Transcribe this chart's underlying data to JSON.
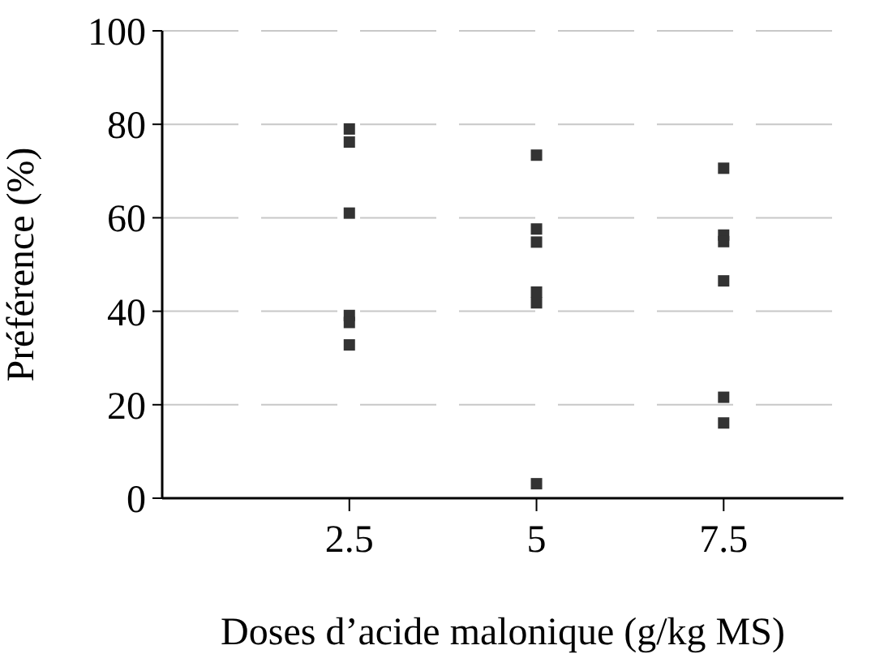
{
  "chart_data": {
    "type": "scatter",
    "xlabel": "Doses d’acide malonique (g/kg MS)",
    "ylabel": "Préférence (%)",
    "series": [
      {
        "color": "#333333",
        "x": [
          2.5,
          2.5,
          2.5,
          2.5,
          2.5,
          2.5,
          5,
          5,
          5,
          5,
          5,
          5,
          7.5,
          7.5,
          7.5,
          7.5,
          7.5,
          7.5
        ],
        "values": [
          79,
          76.2,
          61,
          39.1,
          37.6,
          32.8,
          73.4,
          57.6,
          54.8,
          44.1,
          41.8,
          3.1,
          70.6,
          56.3,
          54.9,
          46.5,
          21.6,
          16.1
        ]
      }
    ],
    "xlim": [
      0,
      9.1
    ],
    "xticks": [
      2.5,
      5,
      7.5
    ],
    "ylim": [
      0,
      100
    ],
    "yticks": [
      0,
      20,
      40,
      60,
      80,
      100
    ],
    "grid": "y",
    "marker": "square",
    "legend": false
  }
}
